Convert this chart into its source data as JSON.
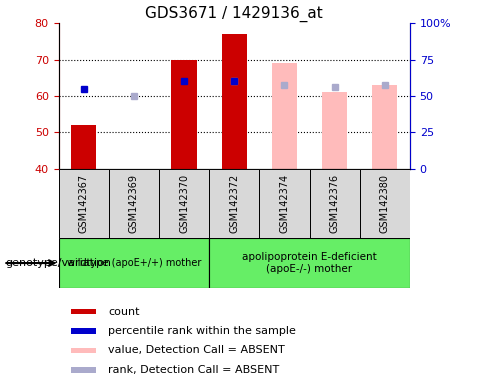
{
  "title": "GDS3671 / 1429136_at",
  "samples": [
    "GSM142367",
    "GSM142369",
    "GSM142370",
    "GSM142372",
    "GSM142374",
    "GSM142376",
    "GSM142380"
  ],
  "ylim_left": [
    40,
    80
  ],
  "ylim_right": [
    0,
    100
  ],
  "yticks_left": [
    40,
    50,
    60,
    70,
    80
  ],
  "yticks_right": [
    0,
    25,
    50,
    75,
    100
  ],
  "red_bars": [
    52,
    null,
    70,
    77,
    null,
    null,
    null
  ],
  "pink_bars": [
    null,
    null,
    null,
    77,
    69,
    61,
    63
  ],
  "blue_squares": [
    62,
    null,
    64,
    64,
    null,
    null,
    null
  ],
  "lightblue_squares": [
    null,
    60,
    null,
    64,
    63,
    62.5,
    63
  ],
  "bar_width": 0.5,
  "red_color": "#cc0000",
  "pink_color": "#ffbbbb",
  "blue_color": "#0000cc",
  "lightblue_color": "#aaaacc",
  "group1_samples": [
    0,
    1,
    2
  ],
  "group2_samples": [
    3,
    4,
    5,
    6
  ],
  "group1_label": "wildtype (apoE+/+) mother",
  "group2_label": "apolipoprotein E-deficient\n(apoE-/-) mother",
  "group_label_prefix": "genotype/variation",
  "legend_labels": [
    "count",
    "percentile rank within the sample",
    "value, Detection Call = ABSENT",
    "rank, Detection Call = ABSENT"
  ],
  "legend_colors": [
    "#cc0000",
    "#0000cc",
    "#ffbbbb",
    "#aaaacc"
  ],
  "grid_yticks": [
    50,
    60,
    70
  ],
  "tick_label_color_left": "#cc0000",
  "tick_label_color_right": "#0000cc",
  "title_fontsize": 11,
  "ytick_right_labels": [
    "0",
    "25",
    "50",
    "75",
    "100%"
  ]
}
